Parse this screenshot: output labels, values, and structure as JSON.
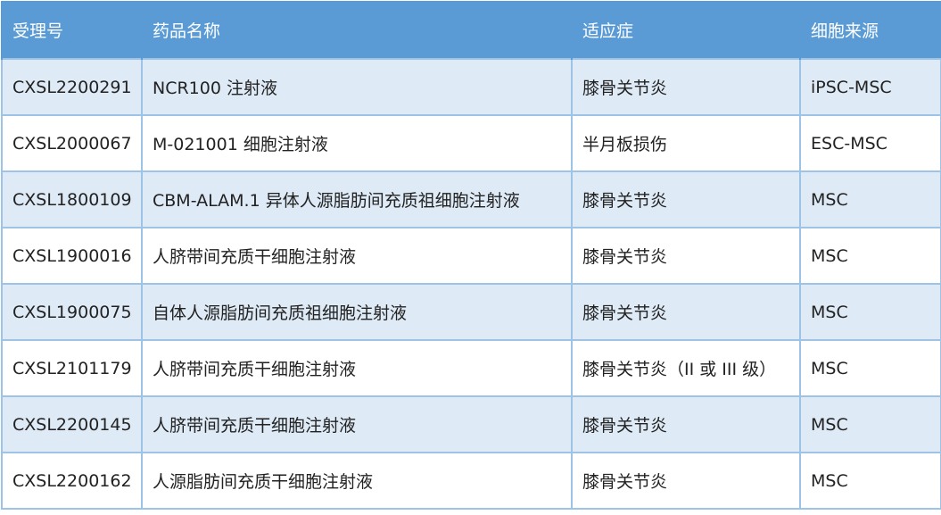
{
  "colors": {
    "header_bg": "#5b9bd5",
    "row_alt_bg": "#deeaf6",
    "border": "#9dc3e6"
  },
  "table": {
    "headers": [
      "受理号",
      "药品名称",
      "适应症",
      "细胞来源"
    ],
    "rows": [
      [
        "CXSL2200291",
        "NCR100 注射液",
        "膝骨关节炎",
        "iPSC-MSC"
      ],
      [
        "CXSL2000067",
        "M-021001 细胞注射液",
        "半月板损伤",
        "ESC-MSC"
      ],
      [
        "CXSL1800109",
        "CBM-ALAM.1 异体人源脂肪间充质祖细胞注射液",
        "膝骨关节炎",
        "MSC"
      ],
      [
        "CXSL1900016",
        "人脐带间充质干细胞注射液",
        "膝骨关节炎",
        "MSC"
      ],
      [
        "CXSL1900075",
        "自体人源脂肪间充质祖细胞注射液",
        "膝骨关节炎",
        "MSC"
      ],
      [
        "CXSL2101179",
        "人脐带间充质干细胞注射液",
        "膝骨关节炎（II 或 III 级）",
        "MSC"
      ],
      [
        "CXSL2200145",
        "人脐带间充质干细胞注射液",
        "膝骨关节炎",
        "MSC"
      ],
      [
        "CXSL2200162",
        "人源脂肪间充质干细胞注射液",
        "膝骨关节炎",
        "MSC"
      ]
    ]
  }
}
